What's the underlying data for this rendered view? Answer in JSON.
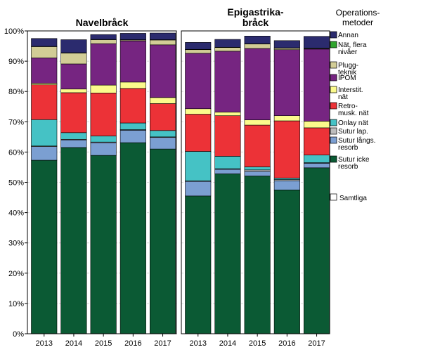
{
  "chart_data": {
    "type": "bar",
    "stacked": true,
    "panels": [
      {
        "title_lines": [
          "Navelbråck"
        ],
        "categories": [
          "2013",
          "2014",
          "2015",
          "2016",
          "2017"
        ]
      },
      {
        "title_lines": [
          "Epigastrika-",
          "bråck"
        ],
        "categories": [
          "2013",
          "2014",
          "2015",
          "2016",
          "2017"
        ]
      }
    ],
    "ylim": [
      0,
      100
    ],
    "yticks": [
      "0%",
      "10%",
      "20%",
      "30%",
      "40%",
      "50%",
      "60%",
      "70%",
      "80%",
      "90%",
      "100%"
    ],
    "ytick_values": [
      0,
      10,
      20,
      30,
      40,
      50,
      60,
      70,
      80,
      90,
      100
    ],
    "legend_title_lines": [
      "Operations-",
      "metoder"
    ],
    "series": [
      {
        "name_lines": [
          "Sutur icke",
          "resorb"
        ],
        "color": "#0b5a34",
        "values": [
          [
            57.3,
            61.5,
            58.9,
            63.1,
            61.0
          ],
          [
            45.5,
            52.8,
            52.1,
            47.5,
            54.8
          ]
        ]
      },
      {
        "name_lines": [
          "Sutur långs.",
          "resorb"
        ],
        "color": "#7b9fd2",
        "values": [
          [
            4.5,
            2.5,
            4.2,
            4.1,
            3.8
          ],
          [
            4.8,
            1.5,
            1.5,
            3.0,
            1.5
          ]
        ]
      },
      {
        "name_lines": [
          "Sutur lap."
        ],
        "color": "#bdbdbd",
        "values": [
          [
            0.2,
            0.2,
            0.2,
            0.2,
            0.2
          ],
          [
            0.2,
            0.2,
            0.5,
            0.4,
            0.2
          ]
        ]
      },
      {
        "name_lines": [
          "Onlay nät"
        ],
        "color": "#45c2c5",
        "values": [
          [
            8.7,
            2.2,
            2.0,
            2.2,
            2.1
          ],
          [
            9.7,
            4.1,
            1.0,
            0.5,
            2.5
          ]
        ]
      },
      {
        "name_lines": [
          "Retro-",
          "musk. nät"
        ],
        "color": "#ec3237",
        "values": [
          [
            11.5,
            13.2,
            14.2,
            11.4,
            8.9
          ],
          [
            12.3,
            13.4,
            13.8,
            18.9,
            9.0
          ]
        ]
      },
      {
        "name_lines": [
          "Interstit.",
          "nät"
        ],
        "color": "#fbfa8c",
        "values": [
          [
            0.5,
            1.2,
            2.6,
            2.1,
            2.0
          ],
          [
            1.8,
            1.2,
            1.7,
            1.7,
            2.2
          ]
        ]
      },
      {
        "name_lines": [
          "IPOM"
        ],
        "color": "#762581",
        "values": [
          [
            8.4,
            8.3,
            13.7,
            13.6,
            17.4
          ],
          [
            18.3,
            20.1,
            23.6,
            21.8,
            23.8
          ]
        ]
      },
      {
        "name_lines": [
          "Plugg-",
          "teknik"
        ],
        "color": "#d2cd96",
        "values": [
          [
            3.7,
            3.6,
            1.3,
            0.3,
            1.6
          ],
          [
            1.2,
            1.2,
            1.5,
            0.5,
            0.2
          ]
        ]
      },
      {
        "name_lines": [
          "Nät, flera",
          "nivåer"
        ],
        "color": "#2fa52d",
        "values": [
          [
            0.1,
            0.1,
            0.1,
            0.1,
            0.1
          ],
          [
            0.1,
            0.1,
            0.1,
            0.1,
            0.1
          ]
        ]
      },
      {
        "name_lines": [
          "Annan"
        ],
        "color": "#2b2b6e",
        "values": [
          [
            2.6,
            4.3,
            1.6,
            2.1,
            2.2
          ],
          [
            2.3,
            2.6,
            2.5,
            2.4,
            3.9
          ]
        ]
      }
    ],
    "extra_legend_lines": [
      "Samtliga"
    ],
    "extra_legend_color": "#ffffff"
  }
}
